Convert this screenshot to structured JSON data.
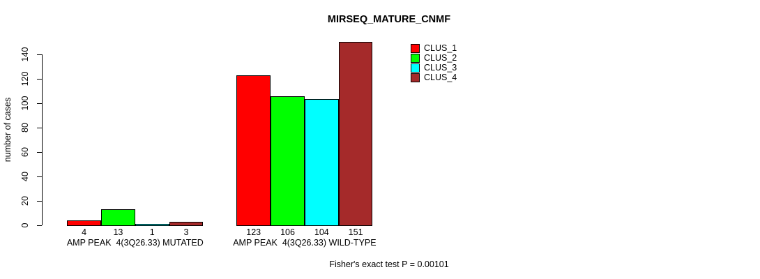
{
  "chart_data": {
    "type": "bar",
    "title": "MIRSEQ_MATURE_CNMF",
    "xlabel": "",
    "ylabel": "number of cases",
    "ylim": [
      0,
      155
    ],
    "yticks": [
      0,
      20,
      40,
      60,
      80,
      100,
      120,
      140
    ],
    "grid": false,
    "legend_position": "top-right",
    "categories": [
      "AMP PEAK  4(3Q26.33) MUTATED",
      "AMP PEAK  4(3Q26.33) WILD-TYPE"
    ],
    "series": [
      {
        "name": "CLUS_1",
        "color": "#FF0000",
        "values": [
          4,
          123
        ]
      },
      {
        "name": "CLUS_2",
        "color": "#00FF00",
        "values": [
          13,
          106
        ]
      },
      {
        "name": "CLUS_3",
        "color": "#00FFFF",
        "values": [
          1,
          104
        ]
      },
      {
        "name": "CLUS_4",
        "color": "#A52A2A",
        "values": [
          3,
          151
        ]
      }
    ],
    "bar_value_labels": [
      [
        "4",
        "13",
        "1",
        "3"
      ],
      [
        "123",
        "106",
        "104",
        "151"
      ]
    ],
    "annotation": "Fisher's exact test P = 0.00101"
  },
  "colors": {
    "background": "#FFFFFF",
    "axis": "#000000",
    "text": "#000000"
  }
}
